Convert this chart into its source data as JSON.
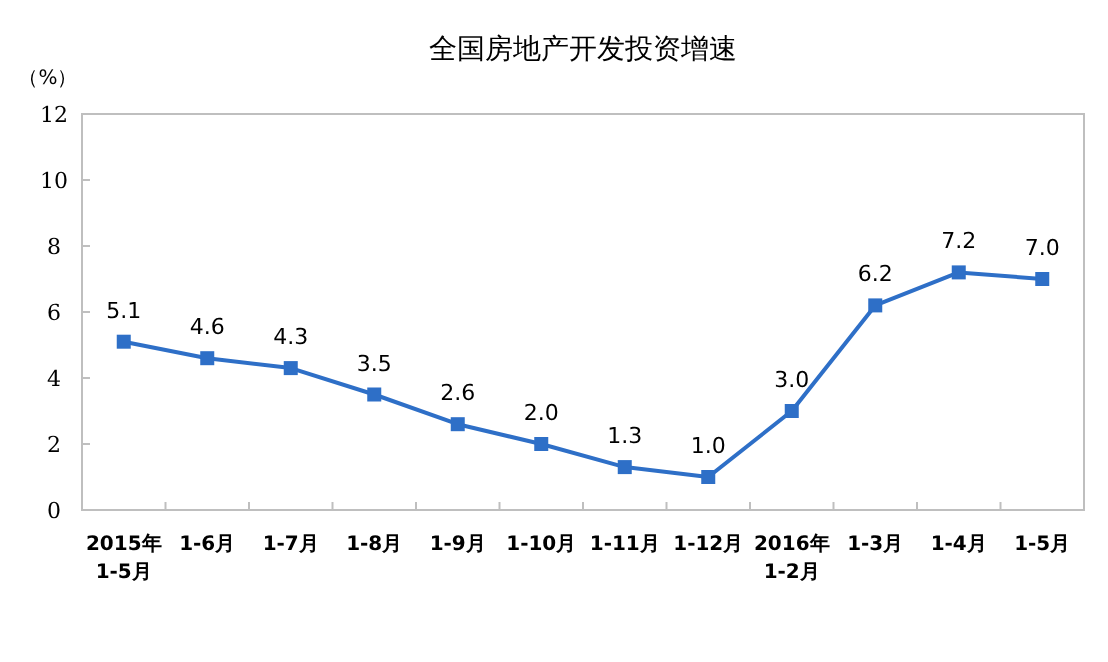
{
  "chart_data": {
    "type": "line",
    "title": "全国房地产开发投资增速",
    "ylabel": "（%）",
    "categories": [
      "2015年 1-5月",
      "1-6月",
      "1-7月",
      "1-8月",
      "1-9月",
      "1-10月",
      "1-11月",
      "1-12月",
      "2016年 1-2月",
      "1-3月",
      "1-4月",
      "1-5月"
    ],
    "series": [
      {
        "color": "#2e6fc7",
        "values": [
          5.1,
          4.6,
          4.3,
          3.5,
          2.6,
          2.0,
          1.3,
          1.0,
          3.0,
          6.2,
          7.2,
          7.0
        ],
        "value_labels": [
          "5.1",
          "4.6",
          "4.3",
          "3.5",
          "2.6",
          "2.0",
          "1.3",
          "1.0",
          "3.0",
          "6.2",
          "7.2",
          "7.0"
        ]
      }
    ],
    "ylim": [
      0,
      12
    ],
    "yticks": [
      0,
      2,
      4,
      6,
      8,
      10,
      12
    ],
    "marker": "square",
    "line_style": "solid",
    "grid": false
  }
}
